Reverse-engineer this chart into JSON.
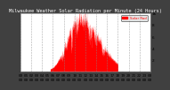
{
  "title": "Milwaukee Weather Solar Radiation per Minute (24 Hours)",
  "bar_color": "#ff0000",
  "bg_color": "#ffffff",
  "outer_bg": "#404040",
  "grid_color": "#888888",
  "num_points": 1440,
  "peak_minute": 650,
  "peak_value": 900,
  "ylim": [
    0,
    1000
  ],
  "xlim": [
    0,
    1440
  ],
  "ytick_positions": [
    0,
    200,
    400,
    600,
    800,
    1000
  ],
  "ytick_labels": [
    "",
    "2",
    "4",
    "6",
    "8",
    "1k"
  ],
  "legend_label": "Solar Rad",
  "tick_fontsize": 3.2,
  "title_fontsize": 3.8,
  "sunrise": 330,
  "sunset": 1080
}
